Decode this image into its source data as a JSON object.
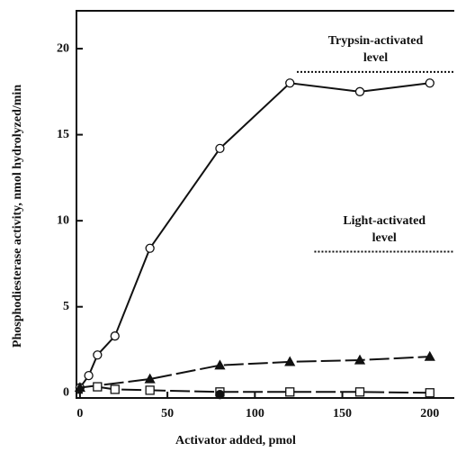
{
  "chart_data": {
    "type": "line",
    "x_label": "Activator added, pmol",
    "y_label": "Phosphodiesterase activity, nmol hydrolyzed/min",
    "xlim": [
      -2,
      214
    ],
    "ylim": [
      -0.3,
      22.2
    ],
    "xticks": [
      0,
      50,
      100,
      150,
      200
    ],
    "yticks": [
      0,
      5,
      10,
      15,
      20
    ],
    "series": [
      {
        "marker": "circle-open",
        "color": "#111111",
        "line": "solid",
        "x": [
          0,
          5,
          10,
          20,
          40,
          80,
          120,
          160,
          200
        ],
        "values": [
          0.3,
          1.0,
          2.2,
          3.3,
          8.4,
          14.2,
          18.0,
          17.5,
          18.0
        ]
      },
      {
        "marker": "triangle-filled",
        "color": "#111111",
        "line": "dashed",
        "x": [
          0,
          40,
          80,
          120,
          160,
          200
        ],
        "values": [
          0.3,
          0.8,
          1.6,
          1.8,
          1.9,
          2.1
        ]
      },
      {
        "marker": "square-open",
        "color": "#111111",
        "line": "dashed",
        "x": [
          10,
          20,
          40,
          80,
          120,
          160,
          200
        ],
        "values": [
          0.35,
          0.2,
          0.15,
          0.05,
          0.05,
          0.05,
          0.0
        ]
      },
      {
        "marker": "circle-filled",
        "color": "#111111",
        "line": "none",
        "x": [
          80
        ],
        "values": [
          -0.1
        ]
      }
    ],
    "reference_lines": [
      {
        "label": [
          "Trypsin-activated",
          "level"
        ],
        "y": 18.65,
        "x": [
          124,
          214
        ]
      },
      {
        "label": [
          "Light-activated",
          "level"
        ],
        "y": 8.2,
        "x": [
          134,
          214
        ]
      }
    ]
  }
}
